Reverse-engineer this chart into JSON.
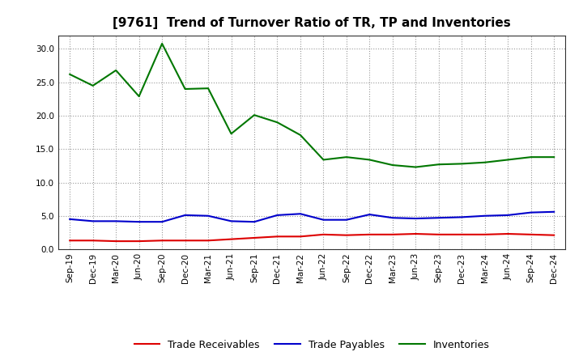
{
  "title": "[9761]  Trend of Turnover Ratio of TR, TP and Inventories",
  "x_labels": [
    "Sep-19",
    "Dec-19",
    "Mar-20",
    "Jun-20",
    "Sep-20",
    "Dec-20",
    "Mar-21",
    "Jun-21",
    "Sep-21",
    "Dec-21",
    "Mar-22",
    "Jun-22",
    "Sep-22",
    "Dec-22",
    "Mar-23",
    "Jun-23",
    "Sep-23",
    "Dec-23",
    "Mar-24",
    "Jun-24",
    "Sep-24",
    "Dec-24"
  ],
  "trade_receivables": [
    1.3,
    1.3,
    1.2,
    1.2,
    1.3,
    1.3,
    1.3,
    1.5,
    1.7,
    1.9,
    1.9,
    2.2,
    2.1,
    2.2,
    2.2,
    2.3,
    2.2,
    2.2,
    2.2,
    2.3,
    2.2,
    2.1
  ],
  "trade_payables": [
    4.5,
    4.2,
    4.2,
    4.1,
    4.1,
    5.1,
    5.0,
    4.2,
    4.1,
    5.1,
    5.3,
    4.4,
    4.4,
    5.2,
    4.7,
    4.6,
    4.7,
    4.8,
    5.0,
    5.1,
    5.5,
    5.6
  ],
  "inventories": [
    26.2,
    24.5,
    26.8,
    22.9,
    30.8,
    24.0,
    24.1,
    17.3,
    20.1,
    19.0,
    17.1,
    13.4,
    13.8,
    13.4,
    12.6,
    12.3,
    12.7,
    12.8,
    13.0,
    13.4,
    13.8,
    13.8
  ],
  "color_tr": "#dd0000",
  "color_tp": "#0000cc",
  "color_inv": "#007700",
  "ylim": [
    0.0,
    32.0
  ],
  "yticks": [
    0.0,
    5.0,
    10.0,
    15.0,
    20.0,
    25.0,
    30.0
  ],
  "legend_tr": "Trade Receivables",
  "legend_tp": "Trade Payables",
  "legend_inv": "Inventories",
  "bg_color": "#ffffff",
  "plot_bg_color": "#ffffff",
  "grid_color": "#999999",
  "title_fontsize": 11,
  "tick_fontsize": 7.5,
  "legend_fontsize": 9
}
